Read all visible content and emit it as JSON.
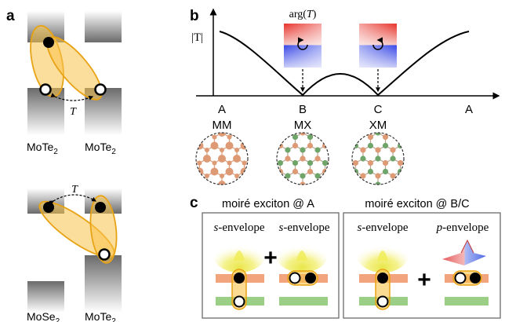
{
  "panel_a": {
    "label": "a",
    "top_layers": [
      "MoTe",
      "MoTe"
    ],
    "top_subscripts": [
      "2",
      "2"
    ],
    "bottom_layers": [
      "MoSe",
      "MoTe"
    ],
    "bottom_subscripts": [
      "2",
      "2"
    ],
    "hop_symbol": "T"
  },
  "panel_b": {
    "label": "b",
    "y_label": "|T|",
    "arg_label": "arg(T)",
    "x_ticks": [
      "A",
      "B",
      "C",
      "A"
    ],
    "stackings": [
      "MM",
      "MX",
      "XM"
    ]
  },
  "panel_c": {
    "label": "c",
    "title_left": "moiré exciton @ A",
    "title_right": "moiré exciton @ B/C",
    "plus": "+",
    "env_s": "s",
    "env_p": "p",
    "env_suffix": "-envelope"
  },
  "colors": {
    "ellipse_fill": "#f9c24a",
    "ellipse_stroke": "#e8a315",
    "layer_orange": "#f2a57c",
    "layer_green": "#9ccf86",
    "atom_orange": "#dd9a75",
    "atom_green": "#6fa56b",
    "phase_red": "#e8322a",
    "phase_blue": "#2f3fe0"
  }
}
